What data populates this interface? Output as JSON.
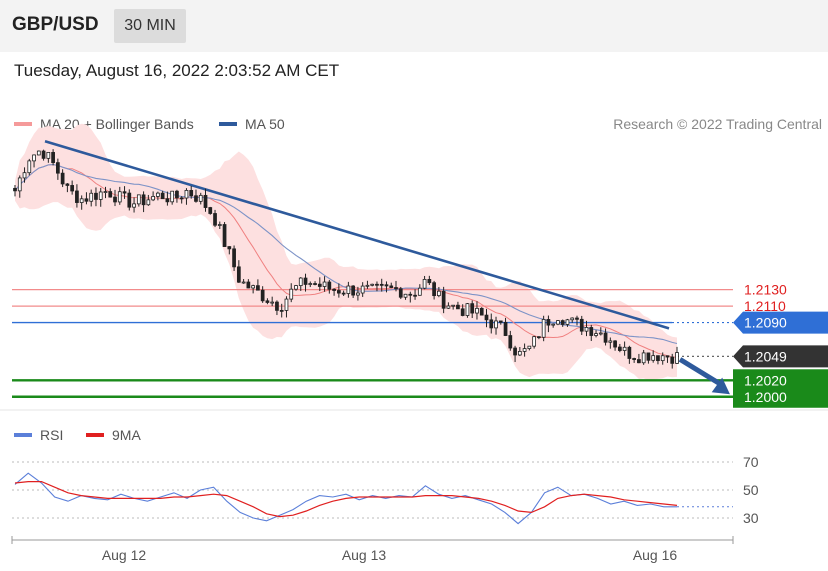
{
  "header": {
    "symbol": "GBP/USD",
    "timeframe": "30 MIN"
  },
  "timestamp": "Tuesday, August 16, 2022 2:03:52 AM CET",
  "legend": {
    "ma20": {
      "label": "MA 20 + Bollinger Bands",
      "color": "#f59a9a"
    },
    "ma50": {
      "label": "MA 50",
      "color": "#2e5a9c"
    }
  },
  "credit": "Research © 2022 Trading Central",
  "rsi_legend": {
    "rsi": {
      "label": "RSI",
      "color": "#5b7fd9"
    },
    "ma9": {
      "label": "9MA",
      "color": "#e02020"
    }
  },
  "colors": {
    "resistance": "#f28b8b",
    "pivot": "#2f6fd6",
    "support": "#1a8a1a",
    "current": "#333333",
    "arrow": "#2e5a9c"
  },
  "chart_data": [
    {
      "type": "candlestick",
      "title": "",
      "x_ticks": [
        "Aug 12",
        "Aug 13",
        "Aug 16"
      ],
      "ylim": [
        1.199,
        1.232
      ],
      "levels": [
        {
          "value": 1.213,
          "label": "1.2130",
          "kind": "resistance"
        },
        {
          "value": 1.211,
          "label": "1.2110",
          "kind": "resistance"
        },
        {
          "value": 1.209,
          "label": "1.2090",
          "kind": "pivot"
        },
        {
          "value": 1.2049,
          "label": "1.2049",
          "kind": "current"
        },
        {
          "value": 1.202,
          "label": "1.2020",
          "kind": "support"
        },
        {
          "value": 1.2,
          "label": "1.2000",
          "kind": "support"
        }
      ],
      "trendline": [
        [
          0.0,
          1.231
        ],
        [
          1.0,
          1.2083
        ]
      ],
      "forecast_arrow": {
        "from": [
          1.0,
          1.2049
        ],
        "to": [
          1.08,
          1.2003
        ]
      },
      "close_path": [
        [
          0.0,
          1.225
        ],
        [
          0.02,
          1.229
        ],
        [
          0.04,
          1.23
        ],
        [
          0.06,
          1.228
        ],
        [
          0.08,
          1.225
        ],
        [
          0.1,
          1.224
        ],
        [
          0.12,
          1.2245
        ],
        [
          0.14,
          1.225
        ],
        [
          0.16,
          1.224
        ],
        [
          0.18,
          1.2235
        ],
        [
          0.2,
          1.224
        ],
        [
          0.22,
          1.2245
        ],
        [
          0.24,
          1.224
        ],
        [
          0.26,
          1.225
        ],
        [
          0.28,
          1.224
        ],
        [
          0.3,
          1.222
        ],
        [
          0.32,
          1.218
        ],
        [
          0.34,
          1.214
        ],
        [
          0.36,
          1.213
        ],
        [
          0.38,
          1.212
        ],
        [
          0.4,
          1.211
        ],
        [
          0.42,
          1.213
        ],
        [
          0.44,
          1.214
        ],
        [
          0.46,
          1.2135
        ],
        [
          0.48,
          1.213
        ],
        [
          0.5,
          1.213
        ],
        [
          0.52,
          1.213
        ],
        [
          0.54,
          1.2128
        ],
        [
          0.56,
          1.213
        ],
        [
          0.58,
          1.213
        ],
        [
          0.6,
          1.2125
        ],
        [
          0.62,
          1.214
        ],
        [
          0.64,
          1.212
        ],
        [
          0.66,
          1.211
        ],
        [
          0.68,
          1.2105
        ],
        [
          0.7,
          1.21
        ],
        [
          0.72,
          1.209
        ],
        [
          0.74,
          1.208
        ],
        [
          0.76,
          1.205
        ],
        [
          0.78,
          1.206
        ],
        [
          0.8,
          1.209
        ],
        [
          0.82,
          1.21
        ],
        [
          0.84,
          1.209
        ],
        [
          0.86,
          1.2085
        ],
        [
          0.88,
          1.208
        ],
        [
          0.9,
          1.207
        ],
        [
          0.92,
          1.2055
        ],
        [
          0.94,
          1.205
        ],
        [
          0.96,
          1.2052
        ],
        [
          0.98,
          1.205
        ],
        [
          1.0,
          1.2049
        ]
      ]
    },
    {
      "type": "line",
      "title": "",
      "ylim": [
        20,
        80
      ],
      "y_ticks": [
        70,
        50,
        30
      ],
      "series": [
        {
          "name": "RSI",
          "values": [
            54,
            62,
            55,
            45,
            42,
            46,
            44,
            43,
            47,
            44,
            42,
            45,
            48,
            44,
            50,
            52,
            42,
            34,
            30,
            28,
            32,
            36,
            42,
            46,
            45,
            47,
            43,
            46,
            44,
            46,
            45,
            53,
            47,
            44,
            46,
            43,
            40,
            34,
            26,
            34,
            48,
            52,
            46,
            47,
            44,
            40,
            42,
            39,
            40,
            38,
            38
          ]
        },
        {
          "name": "9MA",
          "values": [
            55,
            56,
            56,
            52,
            48,
            46,
            45,
            44,
            44,
            44,
            44,
            44,
            45,
            45,
            46,
            47,
            46,
            42,
            38,
            33,
            31,
            32,
            35,
            39,
            42,
            44,
            45,
            45,
            45,
            45,
            45,
            46,
            46,
            46,
            45,
            44,
            42,
            39,
            35,
            34,
            38,
            44,
            46,
            47,
            46,
            45,
            43,
            42,
            41,
            40,
            39
          ]
        }
      ]
    }
  ]
}
